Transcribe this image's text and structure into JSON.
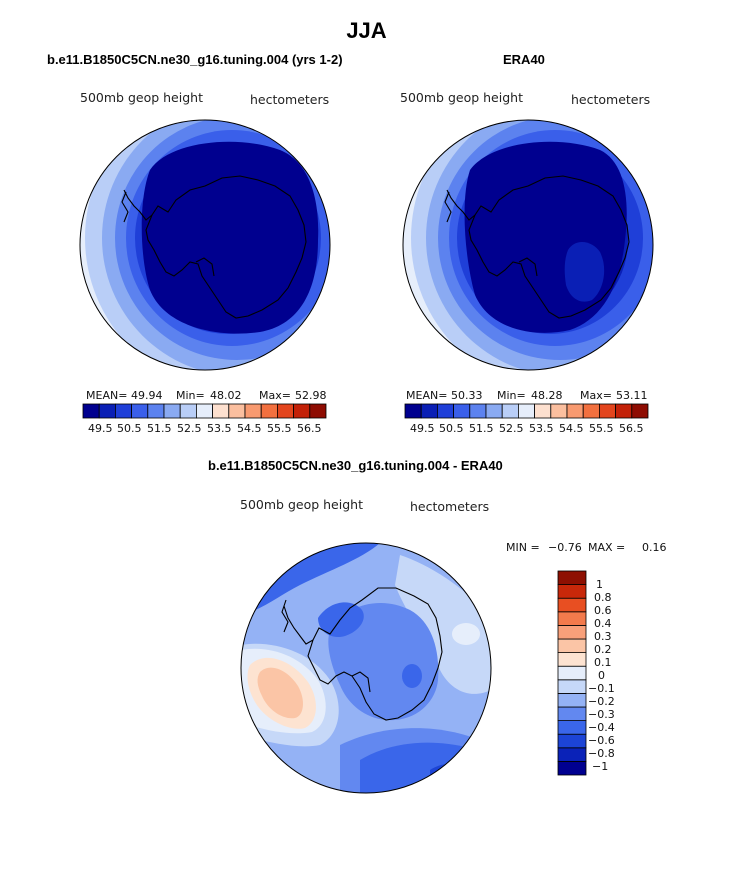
{
  "main_title": "JJA",
  "panels": [
    {
      "title": "b.e11.B1850C5CN.ne30_g16.tuning.004 (yrs 1-2)",
      "variable_label": "500mb geop height",
      "units_label": "hectometers",
      "stats": {
        "mean_label": "MEAN=",
        "mean": "49.94",
        "min_label": "Min=",
        "min": "48.02",
        "max_label": "Max=",
        "max": "52.98"
      },
      "colorbar_ticks": [
        "49.5",
        "50.5",
        "51.5",
        "52.5",
        "53.5",
        "54.5",
        "55.5",
        "56.5"
      ]
    },
    {
      "title": "ERA40",
      "variable_label": "500mb geop height",
      "units_label": "hectometers",
      "stats": {
        "mean_label": "MEAN=",
        "mean": "50.33",
        "min_label": "Min=",
        "min": "48.28",
        "max_label": "Max=",
        "max": "53.11"
      },
      "colorbar_ticks": [
        "49.5",
        "50.5",
        "51.5",
        "52.5",
        "53.5",
        "54.5",
        "55.5",
        "56.5"
      ]
    },
    {
      "title": "b.e11.B1850C5CN.ne30_g16.tuning.004 - ERA40",
      "variable_label": "500mb geop height",
      "units_label": "hectometers",
      "stats": {
        "min_label": "MIN =",
        "min": "−0.76",
        "max_label": "MAX =",
        "max": "0.16"
      },
      "colorbar_ticks": [
        "1",
        "0.8",
        "0.6",
        "0.4",
        "0.3",
        "0.2",
        "0.1",
        "0",
        "−0.1",
        "−0.2",
        "−0.3",
        "−0.4",
        "−0.6",
        "−0.8",
        "−1"
      ]
    }
  ],
  "colors": {
    "height_scale": [
      "#00008f",
      "#0a1fb5",
      "#1f3fd8",
      "#3a5fea",
      "#5c82ef",
      "#8aaaf2",
      "#b9cef7",
      "#e6eefb",
      "#fde0cf",
      "#fbbf9f",
      "#f89a70",
      "#f2703f",
      "#e3451d",
      "#c32108",
      "#8e0c02"
    ],
    "diff_scale": [
      "#000090",
      "#0a22b8",
      "#1c44d6",
      "#3a66ea",
      "#6288f0",
      "#94b2f5",
      "#c6d8f8",
      "#e6eefb",
      "#fde3d1",
      "#fbc5a6",
      "#f8a07a",
      "#f37a4c",
      "#e84f22",
      "#c8280a",
      "#8e1002"
    ],
    "coastline": "#000000"
  },
  "chart_data": {
    "type": "map",
    "projection": "south-polar-stereographic",
    "region": "Antarctica / Southern Hemisphere",
    "season": "JJA",
    "maps": [
      {
        "name": "model",
        "title": "b.e11.B1850C5CN.ne30_g16.tuning.004 (yrs 1-2)",
        "mean": 49.94,
        "min": 48.02,
        "max": 52.98,
        "levels": [
          49.5,
          50,
          50.5,
          51,
          51.5,
          52,
          52.5,
          53,
          53.5,
          54,
          54.5,
          55,
          55.5,
          56,
          56.5
        ]
      },
      {
        "name": "era40",
        "title": "ERA40",
        "mean": 50.33,
        "min": 48.28,
        "max": 53.11,
        "levels": [
          49.5,
          50,
          50.5,
          51,
          51.5,
          52,
          52.5,
          53,
          53.5,
          54,
          54.5,
          55,
          55.5,
          56,
          56.5
        ]
      },
      {
        "name": "difference",
        "title": "b.e11.B1850C5CN.ne30_g16.tuning.004 - ERA40",
        "min": -0.76,
        "max": 0.16,
        "levels": [
          -1,
          -0.8,
          -0.6,
          -0.4,
          -0.3,
          -0.2,
          -0.1,
          0,
          0.1,
          0.2,
          0.3,
          0.4,
          0.6,
          0.8,
          1
        ]
      }
    ]
  }
}
